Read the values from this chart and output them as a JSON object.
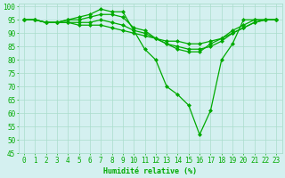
{
  "lines": [
    {
      "x": [
        0,
        1,
        2,
        3,
        4,
        5,
        6,
        7,
        8,
        9,
        10,
        11,
        12,
        13,
        14,
        15,
        16,
        17,
        18,
        19,
        20,
        21,
        22,
        23
      ],
      "y": [
        95,
        95,
        94,
        94,
        95,
        96,
        97,
        99,
        98,
        98,
        91,
        84,
        80,
        70,
        67,
        63,
        52,
        61,
        80,
        86,
        95,
        95,
        95,
        95
      ]
    },
    {
      "x": [
        0,
        1,
        2,
        3,
        4,
        5,
        6,
        7,
        8,
        9,
        10,
        11,
        12,
        13,
        14,
        15,
        16,
        17,
        18,
        19,
        20,
        21,
        22,
        23
      ],
      "y": [
        95,
        95,
        94,
        94,
        95,
        95,
        96,
        97,
        97,
        96,
        92,
        91,
        88,
        86,
        84,
        83,
        83,
        86,
        88,
        91,
        93,
        95,
        95,
        95
      ]
    },
    {
      "x": [
        0,
        1,
        2,
        3,
        4,
        5,
        6,
        7,
        8,
        9,
        10,
        11,
        12,
        13,
        14,
        15,
        16,
        17,
        18,
        19,
        20,
        21,
        22,
        23
      ],
      "y": [
        95,
        95,
        94,
        94,
        94,
        94,
        94,
        95,
        94,
        93,
        91,
        90,
        88,
        86,
        85,
        84,
        84,
        85,
        87,
        90,
        92,
        94,
        95,
        95
      ]
    },
    {
      "x": [
        0,
        1,
        2,
        3,
        4,
        5,
        6,
        7,
        8,
        9,
        10,
        11,
        12,
        13,
        14,
        15,
        16,
        17,
        18,
        19,
        20,
        21,
        22,
        23
      ],
      "y": [
        95,
        95,
        94,
        94,
        94,
        93,
        93,
        93,
        92,
        91,
        90,
        89,
        88,
        87,
        87,
        86,
        86,
        87,
        88,
        90,
        92,
        94,
        95,
        95
      ]
    }
  ],
  "line_color": "#00aa00",
  "marker": "D",
  "markersize": 2.0,
  "linewidth": 0.9,
  "xlabel": "Humidité relative (%)",
  "xlim": [
    -0.5,
    23.5
  ],
  "ylim": [
    45,
    101
  ],
  "yticks": [
    45,
    50,
    55,
    60,
    65,
    70,
    75,
    80,
    85,
    90,
    95,
    100
  ],
  "xticks": [
    0,
    1,
    2,
    3,
    4,
    5,
    6,
    7,
    8,
    9,
    10,
    11,
    12,
    13,
    14,
    15,
    16,
    17,
    18,
    19,
    20,
    21,
    22,
    23
  ],
  "bg_color": "#d4f0f0",
  "grid_color": "#aaddcc",
  "tick_color": "#00aa00",
  "label_color": "#00aa00",
  "font_size": 5.5,
  "xlabel_fontsize": 6.0
}
